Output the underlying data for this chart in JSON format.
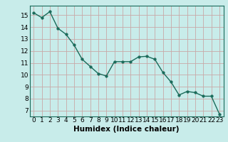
{
  "x": [
    0,
    1,
    2,
    3,
    4,
    5,
    6,
    7,
    8,
    9,
    10,
    11,
    12,
    13,
    14,
    15,
    16,
    17,
    18,
    19,
    20,
    21,
    22,
    23
  ],
  "y": [
    15.2,
    14.8,
    15.3,
    13.9,
    13.4,
    12.5,
    11.3,
    10.7,
    10.1,
    9.9,
    11.1,
    11.1,
    11.1,
    11.5,
    11.55,
    11.3,
    10.2,
    9.4,
    8.3,
    8.6,
    8.5,
    8.2,
    8.2,
    6.7
  ],
  "xlim": [
    -0.5,
    23.5
  ],
  "ylim": [
    6.5,
    15.8
  ],
  "yticks": [
    7,
    8,
    9,
    10,
    11,
    12,
    13,
    14,
    15
  ],
  "xticks": [
    0,
    1,
    2,
    3,
    4,
    5,
    6,
    7,
    8,
    9,
    10,
    11,
    12,
    13,
    14,
    15,
    16,
    17,
    18,
    19,
    20,
    21,
    22,
    23
  ],
  "xlabel": "Humidex (Indice chaleur)",
  "line_color": "#1a6b5a",
  "marker_color": "#1a6b5a",
  "bg_color": "#c8ecea",
  "grid_color": "#c8a8a8",
  "xlabel_fontsize": 7.5,
  "tick_fontsize": 6.5
}
